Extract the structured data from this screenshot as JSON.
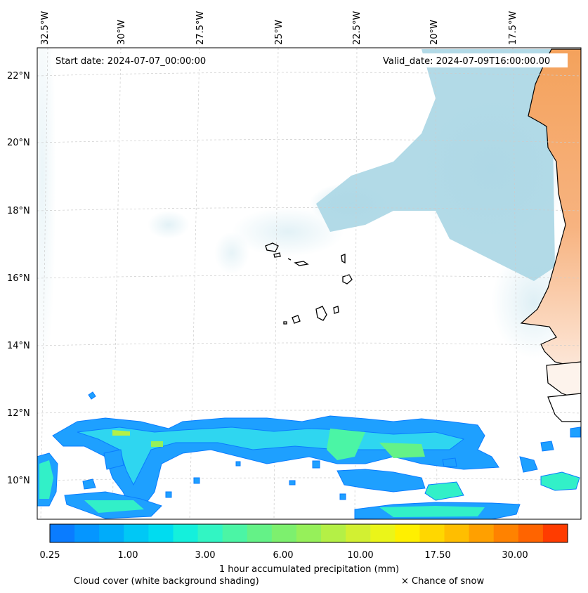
{
  "header": {
    "start_date": "Start date: 2024-07-07_00:00:00",
    "valid_date": "Valid_date: 2024-07-09T16:00:00.00"
  },
  "axes": {
    "longitude_labels": [
      "32.5°W",
      "30°W",
      "27.5°W",
      "25°W",
      "22.5°W",
      "20°W",
      "17.5°W"
    ],
    "latitude_labels": [
      "22°N",
      "20°N",
      "18°N",
      "16°N",
      "14°N",
      "12°N",
      "10°N"
    ]
  },
  "colorbar": {
    "tick_labels": [
      "0.25",
      "1.00",
      "3.00",
      "6.00",
      "10.00",
      "17.50",
      "30.00"
    ],
    "label": "1 hour accumulated precipitation (mm)",
    "colors": [
      "#0a7cff",
      "#0596ff",
      "#00acfa",
      "#00c8f5",
      "#00dcf0",
      "#14f0dc",
      "#32f5c3",
      "#4bf5a5",
      "#64f287",
      "#7df06e",
      "#96f05a",
      "#b4f046",
      "#d2f032",
      "#ebf519",
      "#fff000",
      "#ffd700",
      "#ffbe00",
      "#ffa000",
      "#ff8200",
      "#ff6400",
      "#ff3c00"
    ]
  },
  "legend": {
    "cloud_cover": "Cloud cover (white background shading)",
    "snow": "× Chance of snow"
  },
  "colors": {
    "land": "#f5a05a",
    "cloud": "#aed8e6",
    "precip_light": "#1ea0ff",
    "precip_mid": "#32f0c8"
  }
}
